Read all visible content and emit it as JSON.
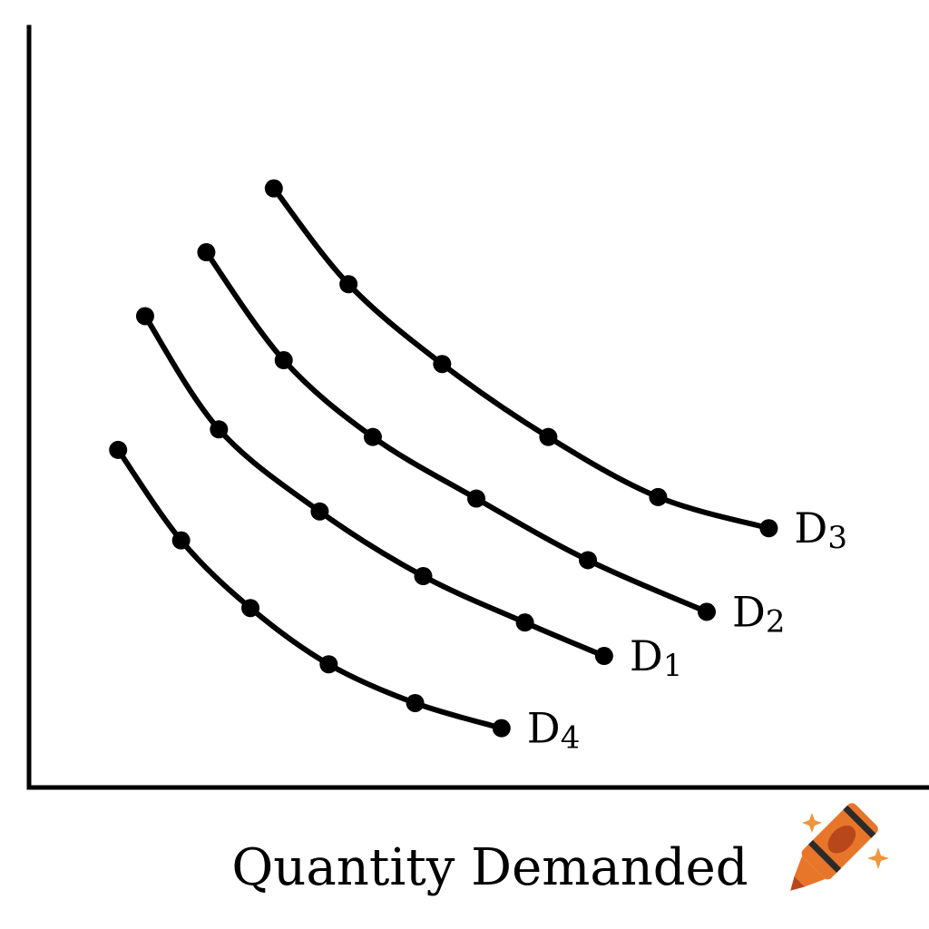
{
  "chart_data": {
    "type": "line",
    "xlabel": "Quantity Demanded",
    "ylabel": "",
    "title": "",
    "grid": false,
    "legend": "inline-right",
    "series": [
      {
        "name": "D3",
        "x": [
          27.2,
          35.5,
          45.9,
          57.7,
          69.9,
          82.2
        ],
        "y": [
          78.8,
          66.2,
          55.7,
          46.1,
          38.2,
          34.1
        ]
      },
      {
        "name": "D2",
        "x": [
          19.7,
          28.3,
          38.2,
          49.7,
          62.1,
          75.3
        ],
        "y": [
          70.4,
          56.2,
          46.1,
          38.0,
          29.9,
          23.1
        ]
      },
      {
        "name": "D1",
        "x": [
          12.9,
          21.1,
          32.3,
          43.8,
          55.1,
          63.9
        ],
        "y": [
          62.0,
          47.1,
          36.3,
          27.8,
          21.7,
          17.3
        ]
      },
      {
        "name": "D4",
        "x": [
          9.9,
          16.9,
          24.6,
          33.3,
          42.9,
          52.5
        ],
        "y": [
          44.4,
          32.5,
          23.6,
          16.2,
          11.1,
          7.8
        ]
      }
    ],
    "colors": {
      "line": "#000000",
      "point": "#000000"
    }
  },
  "decorations": {
    "corner_icon": "crayon-icon",
    "crayon_colors": [
      "#e8762a",
      "#b8481c",
      "#2b2b2b",
      "#f0953a"
    ]
  }
}
